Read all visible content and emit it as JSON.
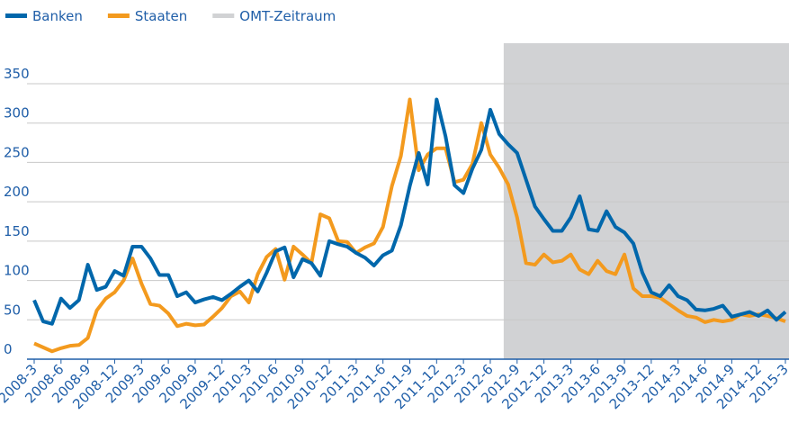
{
  "chart_data": {
    "type": "line",
    "categories": [
      "2008-3",
      null,
      null,
      "2008-6",
      null,
      null,
      "2008-9",
      null,
      null,
      "2008-12",
      null,
      null,
      "2009-3",
      null,
      null,
      "2009-6",
      null,
      null,
      "2009-9",
      null,
      null,
      "2009-12",
      null,
      null,
      "2010-3",
      null,
      null,
      "2010-6",
      null,
      null,
      "2010-9",
      null,
      null,
      "2010-12",
      null,
      null,
      "2011-3",
      null,
      null,
      "2011-6",
      null,
      null,
      "2011-9",
      null,
      null,
      "2011-12",
      null,
      null,
      "2012-3",
      null,
      null,
      "2012-6",
      null,
      null,
      "2012-9",
      null,
      null,
      "2012-12",
      null,
      null,
      "2013-3",
      null,
      null,
      "2013-6",
      null,
      null,
      "2013-9",
      null,
      null,
      "2013-12",
      null,
      null,
      "2014-3",
      null,
      null,
      "2014-6",
      null,
      null,
      "2014-9",
      null,
      null,
      "2014-12",
      null,
      null,
      "2015-3"
    ],
    "series": [
      {
        "name": "Banken",
        "color": "#0067ab",
        "values": [
          75,
          48,
          45,
          77,
          65,
          75,
          120,
          88,
          92,
          112,
          106,
          143,
          143,
          128,
          107,
          107,
          80,
          85,
          72,
          76,
          79,
          75,
          83,
          92,
          100,
          86,
          110,
          137,
          142,
          104,
          127,
          122,
          106,
          150,
          146,
          143,
          135,
          129,
          119,
          132,
          138,
          170,
          220,
          262,
          222,
          330,
          283,
          221,
          211,
          242,
          266,
          317,
          286,
          273,
          262,
          228,
          194,
          178,
          163,
          163,
          180,
          207,
          165,
          163,
          188,
          168,
          161,
          147,
          110,
          85,
          80,
          94,
          80,
          75,
          63,
          62,
          64,
          68,
          54,
          57,
          60,
          55,
          62,
          50,
          60
        ]
      },
      {
        "name": "Staaten",
        "color": "#f39a1e",
        "values": [
          20,
          15,
          10,
          14,
          17,
          18,
          27,
          62,
          77,
          85,
          100,
          128,
          96,
          70,
          68,
          58,
          42,
          45,
          43,
          44,
          54,
          65,
          80,
          86,
          72,
          108,
          130,
          140,
          101,
          143,
          133,
          122,
          184,
          179,
          150,
          149,
          135,
          142,
          147,
          168,
          220,
          258,
          330,
          240,
          260,
          268,
          268,
          225,
          228,
          248,
          300,
          260,
          243,
          222,
          180,
          122,
          120,
          133,
          123,
          125,
          133,
          114,
          108,
          125,
          112,
          108,
          133,
          90,
          80,
          80,
          78,
          70,
          62,
          55,
          53,
          47,
          50,
          48,
          50,
          57,
          55,
          57,
          55,
          52,
          48
        ]
      }
    ],
    "shade": {
      "label": "OMT-Zeitraum",
      "color": "#d1d2d4",
      "from": 53
    },
    "ylim": [
      0,
      350
    ],
    "yticks": [
      0,
      50,
      100,
      150,
      200,
      250,
      300,
      350
    ],
    "grid": true
  }
}
